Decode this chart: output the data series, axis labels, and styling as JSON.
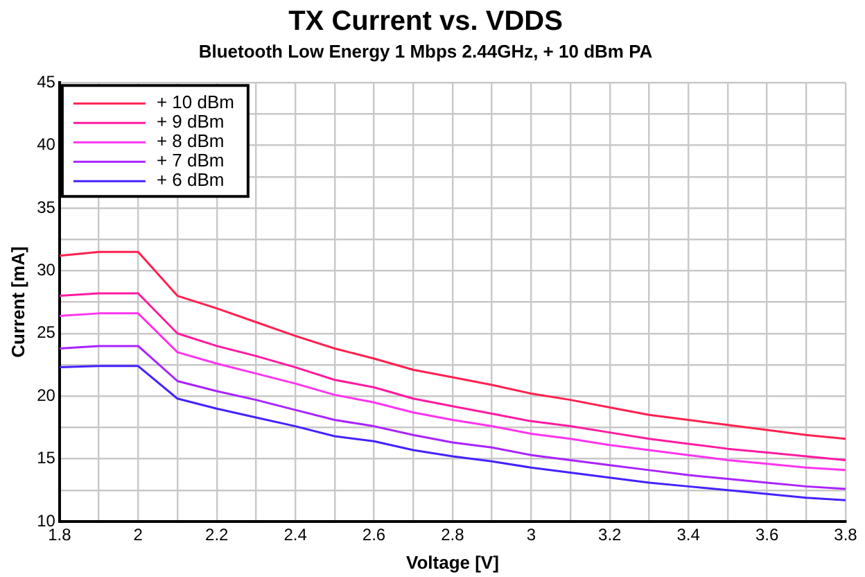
{
  "chart_data": {
    "type": "line",
    "title": "TX Current vs. VDDS",
    "subtitle": "Bluetooth Low Energy 1 Mbps 2.44GHz, + 10 dBm PA",
    "xlabel": "Voltage [V]",
    "ylabel": "Current [mA]",
    "x": [
      1.8,
      1.9,
      2.0,
      2.1,
      2.2,
      2.3,
      2.4,
      2.5,
      2.6,
      2.7,
      2.8,
      2.9,
      3.0,
      3.1,
      3.2,
      3.3,
      3.4,
      3.5,
      3.6,
      3.7,
      3.8
    ],
    "series": [
      {
        "name": "+ 10 dBm",
        "color": "#ff2050",
        "values": [
          31.2,
          31.5,
          31.5,
          28.0,
          27.0,
          25.9,
          24.8,
          23.8,
          23.0,
          22.1,
          21.5,
          20.9,
          20.2,
          19.7,
          19.1,
          18.5,
          18.1,
          17.7,
          17.3,
          16.9,
          16.6
        ]
      },
      {
        "name": "+ 9 dBm",
        "color": "#ff1aa0",
        "values": [
          28.0,
          28.2,
          28.2,
          25.0,
          24.0,
          23.2,
          22.3,
          21.3,
          20.7,
          19.8,
          19.2,
          18.6,
          18.0,
          17.6,
          17.1,
          16.6,
          16.2,
          15.8,
          15.5,
          15.2,
          14.9
        ]
      },
      {
        "name": "+ 8 dBm",
        "color": "#ff33ee",
        "values": [
          26.4,
          26.6,
          26.6,
          23.5,
          22.6,
          21.8,
          21.0,
          20.1,
          19.5,
          18.7,
          18.1,
          17.6,
          17.0,
          16.6,
          16.1,
          15.7,
          15.3,
          14.9,
          14.6,
          14.3,
          14.1
        ]
      },
      {
        "name": "+ 7 dBm",
        "color": "#aa22ff",
        "values": [
          23.8,
          24.0,
          24.0,
          21.2,
          20.4,
          19.7,
          18.9,
          18.1,
          17.6,
          16.9,
          16.3,
          15.9,
          15.3,
          14.9,
          14.5,
          14.1,
          13.7,
          13.4,
          13.1,
          12.8,
          12.6
        ]
      },
      {
        "name": "+ 6 dBm",
        "color": "#4422ff",
        "values": [
          22.3,
          22.4,
          22.4,
          19.8,
          19.0,
          18.3,
          17.6,
          16.8,
          16.4,
          15.7,
          15.2,
          14.8,
          14.3,
          13.9,
          13.5,
          13.1,
          12.8,
          12.5,
          12.2,
          11.9,
          11.7
        ]
      }
    ],
    "xlim": [
      1.8,
      3.8
    ],
    "xticks": [
      1.8,
      {
        "value": 1.9,
        "label": null
      },
      2,
      {
        "value": 2.1,
        "label": null
      },
      2.2,
      {
        "value": 2.3,
        "label": null
      },
      2.4,
      {
        "value": 2.5,
        "label": null
      },
      2.6,
      {
        "value": 2.7,
        "label": null
      },
      2.8,
      {
        "value": 2.9,
        "label": null
      },
      3,
      {
        "value": 3.1,
        "label": null
      },
      3.2,
      {
        "value": 3.3,
        "label": null
      },
      3.4,
      {
        "value": 3.5,
        "label": null
      },
      3.6,
      {
        "value": 3.7,
        "label": null
      },
      3.8
    ],
    "ylim": [
      10,
      45
    ],
    "yticks": [
      10,
      {
        "value": 12.5,
        "label": null
      },
      15,
      {
        "value": 17.5,
        "label": null
      },
      20,
      {
        "value": 22.5,
        "label": null
      },
      25,
      {
        "value": 27.5,
        "label": null
      },
      30,
      {
        "value": 32.5,
        "label": null
      },
      35,
      {
        "value": 37.5,
        "label": null
      },
      40,
      {
        "value": 42.5,
        "label": null
      },
      45
    ],
    "grid": true,
    "legend": "top left",
    "marker": "none",
    "line_style": "solid"
  }
}
